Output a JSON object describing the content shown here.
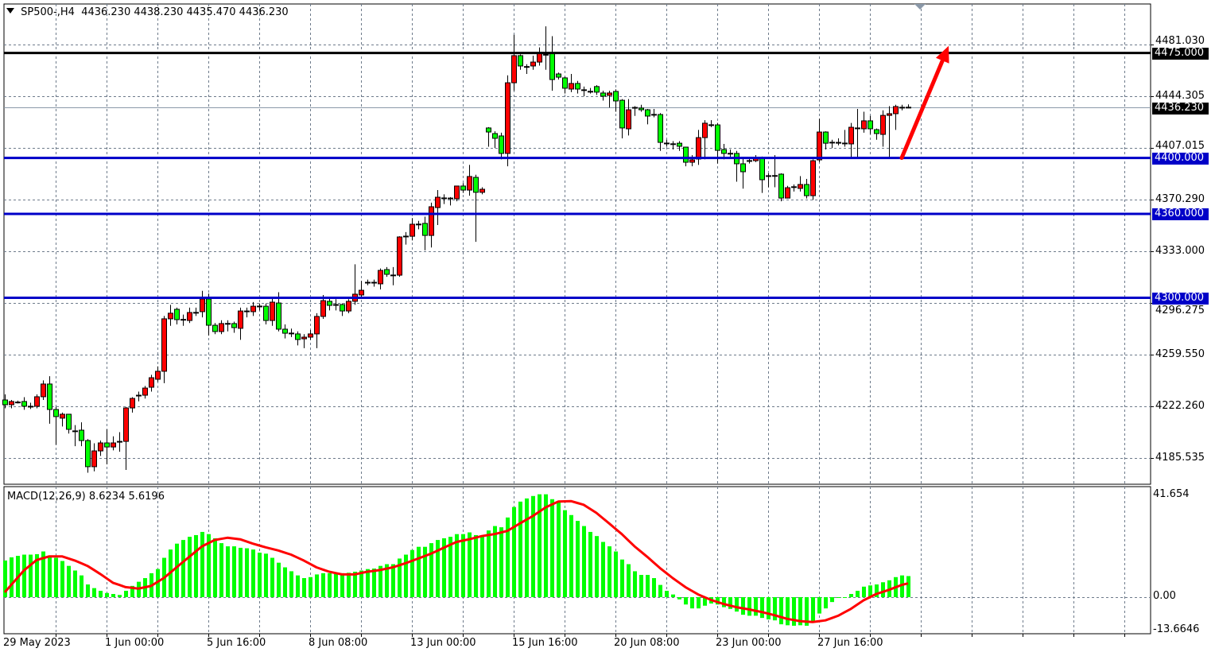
{
  "header": {
    "symbol": "SP500-,H4",
    "ohlc_text": "4436.230 4438.230 4435.470 4436.230"
  },
  "indicator": {
    "label": "MACD(12,26,9) 8.6234 5.6196"
  },
  "colors": {
    "bull": "#ff0000",
    "bear": "#00ff00",
    "level_blue": "#0000c8",
    "level_black": "#000000",
    "macd_hist": "#00ff00",
    "signal": "#ff0000",
    "arrow": "#ff0000",
    "grid": "#6e7b8b"
  },
  "chart_data": {
    "type": "candlestick",
    "symbol": "SP500-",
    "timeframe": "H4",
    "ylim": [
      4170,
      4505
    ],
    "grid": true,
    "price_ticks": [
      "4481.030",
      "4444.305",
      "4407.015",
      "4370.290",
      "4333.000",
      "4296.275",
      "4259.550",
      "4222.260",
      "4185.535"
    ],
    "time_labels": [
      {
        "bar": 0,
        "text": "29 May 2023"
      },
      {
        "bar": 16,
        "text": "1 Jun 00:00"
      },
      {
        "bar": 32,
        "text": "5 Jun 16:00"
      },
      {
        "bar": 48,
        "text": "8 Jun 08:00"
      },
      {
        "bar": 64,
        "text": "13 Jun 00:00"
      },
      {
        "bar": 80,
        "text": "15 Jun 16:00"
      },
      {
        "bar": 96,
        "text": "20 Jun 08:00"
      },
      {
        "bar": 112,
        "text": "23 Jun 00:00"
      },
      {
        "bar": 128,
        "text": "27 Jun 16:00"
      }
    ],
    "levels": [
      {
        "price": 4475.0,
        "label": "4475.000",
        "color": "#000000"
      },
      {
        "price": 4400.0,
        "label": "4400.000",
        "color": "#0000c8"
      },
      {
        "price": 4360.0,
        "label": "4360.000",
        "color": "#0000c8"
      },
      {
        "price": 4300.0,
        "label": "4300.000",
        "color": "#0000c8"
      }
    ],
    "current_price": {
      "price": 4436.23,
      "label": "4436.230"
    },
    "arrow": {
      "from_bar": 141,
      "from_price": 4400,
      "to_bar": 148,
      "to_price": 4480
    },
    "candles_ohlc": [
      [
        4227.0,
        4231,
        4221,
        4223.6
      ],
      [
        4223.6,
        4227,
        4221,
        4225.9
      ],
      [
        4225.3,
        4226.5,
        4224.5,
        4225.5
      ],
      [
        4225.9,
        4229,
        4220,
        4222.5
      ],
      [
        4222.5,
        4225,
        4220.5,
        4222.3
      ],
      [
        4222.5,
        4231,
        4221,
        4229.3
      ],
      [
        4229.3,
        4241,
        4227,
        4238.4
      ],
      [
        4238.4,
        4244,
        4210,
        4220.2
      ],
      [
        4220.2,
        4222,
        4195,
        4215.1
      ],
      [
        4214.0,
        4218,
        4208,
        4216.8
      ],
      [
        4216.8,
        4217,
        4203,
        4206.0
      ],
      [
        4204.9,
        4209,
        4194,
        4204.8
      ],
      [
        4205.4,
        4211,
        4194,
        4198.0
      ],
      [
        4198.0,
        4199,
        4175,
        4179.3
      ],
      [
        4179.3,
        4196,
        4176,
        4190.6
      ],
      [
        4190.6,
        4198,
        4187,
        4196.3
      ],
      [
        4196.3,
        4206,
        4181,
        4193.4
      ],
      [
        4193.4,
        4201,
        4191,
        4196.3
      ],
      [
        4196.3,
        4204,
        4190,
        4197.4
      ],
      [
        4197.4,
        4222,
        4177,
        4221.3
      ],
      [
        4221.3,
        4229,
        4218,
        4228.1
      ],
      [
        4229.3,
        4233,
        4226,
        4230.4
      ],
      [
        4230.4,
        4237,
        4228,
        4235.5
      ],
      [
        4236.1,
        4245,
        4233,
        4242.9
      ],
      [
        4241.8,
        4251,
        4240,
        4247.5
      ],
      [
        4247.5,
        4287,
        4239,
        4285.0
      ],
      [
        4285.0,
        4295,
        4280,
        4289.0
      ],
      [
        4291.8,
        4293,
        4281,
        4284.4
      ],
      [
        4284.4,
        4288,
        4280,
        4284.6
      ],
      [
        4283.8,
        4293,
        4282,
        4289.5
      ],
      [
        4289.5,
        4293,
        4287,
        4289.6
      ],
      [
        4290.1,
        4305,
        4286,
        4299.2
      ],
      [
        4299.2,
        4303,
        4273,
        4280.4
      ],
      [
        4280.4,
        4282,
        4274,
        4275.9
      ],
      [
        4275.9,
        4284,
        4274,
        4281.6
      ],
      [
        4281.6,
        4284,
        4276,
        4281.7
      ],
      [
        4281.6,
        4283,
        4275,
        4278.7
      ],
      [
        4278.2,
        4293,
        4270,
        4290.6
      ],
      [
        4290.6,
        4293,
        4286,
        4289.5
      ],
      [
        4290.1,
        4297,
        4287,
        4294.0
      ],
      [
        4294.0,
        4296,
        4291,
        4294.1
      ],
      [
        4294.0,
        4296,
        4281,
        4283.8
      ],
      [
        4283.8,
        4300,
        4280,
        4296.9
      ],
      [
        4296.3,
        4304,
        4276,
        4277.6
      ],
      [
        4277.6,
        4281,
        4271,
        4274.7
      ],
      [
        4274.7,
        4278,
        4272,
        4274.8
      ],
      [
        4274.2,
        4276,
        4266,
        4270.2
      ],
      [
        4270.7,
        4274,
        4264,
        4271.9
      ],
      [
        4271.9,
        4277,
        4270,
        4274.2
      ],
      [
        4274.2,
        4289,
        4264,
        4286.7
      ],
      [
        4286.7,
        4302,
        4285,
        4298.0
      ],
      [
        4297.5,
        4300,
        4291,
        4294.6
      ],
      [
        4295.2,
        4299,
        4291,
        4295.0
      ],
      [
        4295.2,
        4296,
        4287,
        4290.6
      ],
      [
        4290.6,
        4299,
        4289,
        4297.5
      ],
      [
        4297.5,
        4324,
        4295,
        4302.6
      ],
      [
        4302.0,
        4312,
        4300,
        4305.4
      ],
      [
        4311.0,
        4313,
        4309,
        4311.1
      ],
      [
        4311.1,
        4313,
        4308,
        4310.0
      ],
      [
        4310.0,
        4321,
        4306,
        4319.6
      ],
      [
        4320.2,
        4322,
        4315,
        4316.8
      ],
      [
        4316.2,
        4322,
        4309,
        4316.3
      ],
      [
        4316.2,
        4344,
        4315,
        4343.5
      ],
      [
        4344.0,
        4347,
        4338,
        4344.1
      ],
      [
        4344.0,
        4357,
        4341,
        4352.6
      ],
      [
        4352.6,
        4355,
        4349,
        4352.7
      ],
      [
        4353.2,
        4358,
        4334,
        4344.6
      ],
      [
        4344.6,
        4368,
        4336,
        4365.1
      ],
      [
        4364.5,
        4377,
        4352,
        4371.9
      ],
      [
        4371.3,
        4374,
        4367,
        4371.4
      ],
      [
        4371.3,
        4372,
        4366,
        4371.2
      ],
      [
        4370.8,
        4380,
        4369,
        4379.9
      ],
      [
        4379.9,
        4382,
        4375,
        4377.0
      ],
      [
        4377.0,
        4395,
        4373,
        4386.7
      ],
      [
        4386.1,
        4388,
        4340,
        4375.4
      ],
      [
        4375.4,
        4379,
        4374,
        4377.6
      ],
      [
        4421.4,
        4422,
        4408,
        4418.5
      ],
      [
        4417.4,
        4419,
        4407,
        4414.0
      ],
      [
        4415.7,
        4418,
        4399,
        4403.2
      ],
      [
        4403.2,
        4459,
        4394,
        4453.7
      ],
      [
        4453.7,
        4488,
        4448,
        4473.1
      ],
      [
        4473.1,
        4474,
        4463,
        4465.7
      ],
      [
        4465.3,
        4467,
        4460,
        4465.2
      ],
      [
        4465.7,
        4473,
        4463,
        4468.5
      ],
      [
        4468.5,
        4479,
        4466,
        4475.3
      ],
      [
        4473.5,
        4494,
        4463,
        4474.0
      ],
      [
        4475.3,
        4487,
        4448,
        4456.0
      ],
      [
        4460.0,
        4461,
        4456,
        4457.7
      ],
      [
        4457.2,
        4458,
        4446,
        4449.8
      ],
      [
        4449.2,
        4460,
        4447,
        4453.2
      ],
      [
        4453.2,
        4455,
        4446,
        4449.2
      ],
      [
        4448.6,
        4451,
        4444,
        4448.7
      ],
      [
        4447.6,
        4450,
        4446,
        4447.5
      ],
      [
        4451.0,
        4452,
        4445,
        4447.0
      ],
      [
        4446.4,
        4448,
        4441,
        4444.1
      ],
      [
        4444.7,
        4448,
        4436,
        4446.4
      ],
      [
        4447.5,
        4449,
        4433,
        4440.7
      ],
      [
        4441.2,
        4442,
        4414,
        4421.4
      ],
      [
        4420.8,
        4442,
        4416,
        4434.4
      ],
      [
        4435.6,
        4437,
        4430,
        4436.1
      ],
      [
        4435.6,
        4438,
        4433,
        4434.4
      ],
      [
        4434.4,
        4435,
        4424,
        4429.9
      ],
      [
        4431.0,
        4435,
        4429,
        4431.1
      ],
      [
        4431.0,
        4432,
        4405,
        4411.1
      ],
      [
        4410.5,
        4413,
        4408,
        4410.6
      ],
      [
        4410.0,
        4412,
        4406,
        4410.1
      ],
      [
        4410.5,
        4412,
        4405,
        4408.3
      ],
      [
        4407.7,
        4408,
        4394,
        4396.9
      ],
      [
        4396.9,
        4402,
        4394,
        4398.6
      ],
      [
        4399.2,
        4420,
        4395,
        4414.5
      ],
      [
        4414.5,
        4427,
        4399,
        4424.8
      ],
      [
        4423.6,
        4427,
        4422,
        4423.7
      ],
      [
        4423.6,
        4425,
        4396,
        4405.4
      ],
      [
        4406.0,
        4410,
        4399,
        4403.2
      ],
      [
        4403.2,
        4406,
        4400,
        4403.3
      ],
      [
        4403.2,
        4405,
        4383,
        4395.8
      ],
      [
        4395.8,
        4400,
        4378,
        4390.1
      ],
      [
        4398.0,
        4400,
        4396,
        4398.1
      ],
      [
        4398.0,
        4402,
        4397,
        4399.8
      ],
      [
        4399.8,
        4401,
        4375,
        4384.4
      ],
      [
        4386.7,
        4389,
        4379,
        4387.3
      ],
      [
        4387.3,
        4402,
        4379,
        4387.4
      ],
      [
        4388.4,
        4389,
        4369,
        4371.3
      ],
      [
        4371.3,
        4380,
        4371,
        4378.7
      ],
      [
        4379.3,
        4381,
        4376,
        4379.4
      ],
      [
        4378.2,
        4387,
        4376,
        4381.0
      ],
      [
        4381.0,
        4385,
        4371,
        4373.0
      ],
      [
        4373.0,
        4399,
        4370,
        4398.0
      ],
      [
        4398.6,
        4428,
        4397,
        4418.5
      ],
      [
        4418.5,
        4419,
        4406,
        4410.5
      ],
      [
        4411.1,
        4413,
        4407,
        4411.2
      ],
      [
        4411.1,
        4414,
        4409,
        4410.5
      ],
      [
        4410.5,
        4420,
        4408,
        4410.6
      ],
      [
        4410.0,
        4425,
        4400,
        4421.9
      ],
      [
        4421.4,
        4435,
        4400,
        4420.8
      ],
      [
        4420.8,
        4433,
        4418,
        4426.5
      ],
      [
        4426.5,
        4430,
        4417,
        4420.8
      ],
      [
        4420.2,
        4421,
        4413,
        4417.4
      ],
      [
        4416.8,
        4434,
        4408,
        4430.4
      ],
      [
        4430.4,
        4437,
        4400,
        4431.6
      ],
      [
        4431.6,
        4438,
        4420,
        4436.7
      ],
      [
        4436.1,
        4438,
        4434,
        4436.2
      ],
      [
        4436.23,
        4438.23,
        4435.47,
        4436.23
      ]
    ],
    "macd": {
      "params": "12,26,9",
      "main_value": "8.6234",
      "signal_value": "5.6196",
      "ylim": [
        -13.6646,
        41.654
      ],
      "ticks": [
        "41.654",
        "0.00",
        "-13.6646"
      ],
      "histogram": [
        15.0,
        16.3,
        16.9,
        17.4,
        17.4,
        17.6,
        18.7,
        16.9,
        16.1,
        14.8,
        12.8,
        10.9,
        8.9,
        5.2,
        3.7,
        2.6,
        1.7,
        1.3,
        0.9,
        2.6,
        4.6,
        6.3,
        7.8,
        9.8,
        11.5,
        16.1,
        19.5,
        21.9,
        23.4,
        24.7,
        25.4,
        26.7,
        25.8,
        24.1,
        22.1,
        20.8,
        20.8,
        20.2,
        20.0,
        19.5,
        18.2,
        17.8,
        16.1,
        14.1,
        12.2,
        10.6,
        8.9,
        7.8,
        8.2,
        9.3,
        9.8,
        9.8,
        9.5,
        9.8,
        10.0,
        10.4,
        10.9,
        11.5,
        11.7,
        12.8,
        13.5,
        13.5,
        15.8,
        17.4,
        19.3,
        20.6,
        20.6,
        22.1,
        23.4,
        24.1,
        24.7,
        25.8,
        25.8,
        26.5,
        25.4,
        25.2,
        27.3,
        29.1,
        28.6,
        32.6,
        36.9,
        39.1,
        40.4,
        41.4,
        42.1,
        42.1,
        40.1,
        39.3,
        35.6,
        33.6,
        31.2,
        29.1,
        26.7,
        25.0,
        22.6,
        20.8,
        18.7,
        15.4,
        13.5,
        10.6,
        9.1,
        9.1,
        7.8,
        5.0,
        2.6,
        1.1,
        -0.9,
        -3.0,
        -4.6,
        -4.6,
        -3.5,
        -2.6,
        -3.0,
        -4.1,
        -4.8,
        -5.9,
        -7.2,
        -7.6,
        -7.6,
        -8.5,
        -9.1,
        -9.5,
        -11.1,
        -11.5,
        -11.7,
        -11.5,
        -11.7,
        -10.0,
        -6.7,
        -4.6,
        -2.0,
        -0.2,
        -0.2,
        1.3,
        2.6,
        4.3,
        4.8,
        5.2,
        6.1,
        6.9,
        8.2,
        8.9,
        8.6234
      ],
      "signal_by_bar": [
        [
          0,
          2.0
        ],
        [
          3,
          10.9
        ],
        [
          5,
          15.2
        ],
        [
          7,
          16.7
        ],
        [
          9,
          16.7
        ],
        [
          11,
          15.0
        ],
        [
          13,
          12.8
        ],
        [
          15,
          9.5
        ],
        [
          17,
          5.9
        ],
        [
          19,
          4.1
        ],
        [
          21,
          3.5
        ],
        [
          23,
          4.6
        ],
        [
          25,
          7.8
        ],
        [
          27,
          12.2
        ],
        [
          29,
          16.5
        ],
        [
          31,
          20.8
        ],
        [
          33,
          23.4
        ],
        [
          35,
          24.3
        ],
        [
          37,
          23.7
        ],
        [
          39,
          21.9
        ],
        [
          41,
          20.4
        ],
        [
          43,
          19.1
        ],
        [
          45,
          17.4
        ],
        [
          47,
          15.0
        ],
        [
          49,
          12.2
        ],
        [
          51,
          10.4
        ],
        [
          53,
          9.3
        ],
        [
          55,
          9.3
        ],
        [
          57,
          10.4
        ],
        [
          59,
          11.1
        ],
        [
          61,
          12.2
        ],
        [
          63,
          13.9
        ],
        [
          65,
          15.8
        ],
        [
          67,
          17.8
        ],
        [
          69,
          20.2
        ],
        [
          71,
          22.6
        ],
        [
          73,
          23.7
        ],
        [
          75,
          25.0
        ],
        [
          77,
          25.8
        ],
        [
          79,
          27.1
        ],
        [
          81,
          30.2
        ],
        [
          83,
          33.2
        ],
        [
          85,
          36.7
        ],
        [
          87,
          39.1
        ],
        [
          89,
          39.3
        ],
        [
          91,
          37.8
        ],
        [
          93,
          34.5
        ],
        [
          95,
          30.2
        ],
        [
          97,
          25.8
        ],
        [
          99,
          20.8
        ],
        [
          101,
          16.5
        ],
        [
          103,
          11.9
        ],
        [
          105,
          7.8
        ],
        [
          107,
          4.1
        ],
        [
          109,
          1.1
        ],
        [
          111,
          -1.1
        ],
        [
          113,
          -2.8
        ],
        [
          115,
          -4.1
        ],
        [
          117,
          -5.0
        ],
        [
          119,
          -6.1
        ],
        [
          121,
          -7.4
        ],
        [
          123,
          -8.9
        ],
        [
          125,
          -9.8
        ],
        [
          127,
          -10.2
        ],
        [
          129,
          -9.5
        ],
        [
          131,
          -7.6
        ],
        [
          133,
          -4.8
        ],
        [
          135,
          -1.3
        ],
        [
          137,
          1.3
        ],
        [
          139,
          3.0
        ],
        [
          141,
          5.0
        ],
        [
          142,
          5.6196
        ]
      ]
    }
  }
}
